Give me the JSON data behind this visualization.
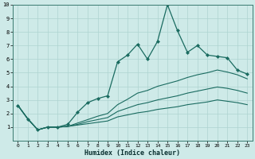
{
  "xlabel": "Humidex (Indice chaleur)",
  "bg_color": "#ceeae8",
  "grid_color": "#aed4d0",
  "line_color": "#1a6b60",
  "xlim": [
    -0.5,
    23.5
  ],
  "ylim": [
    0,
    10
  ],
  "xticks": [
    0,
    1,
    2,
    3,
    4,
    5,
    6,
    7,
    8,
    9,
    10,
    11,
    12,
    13,
    14,
    15,
    16,
    17,
    18,
    19,
    20,
    21,
    22,
    23
  ],
  "yticks": [
    1,
    2,
    3,
    4,
    5,
    6,
    7,
    8,
    9,
    10
  ],
  "series": [
    [
      2.6,
      1.6,
      0.8,
      1.0,
      1.0,
      1.2,
      2.1,
      2.8,
      3.1,
      3.3,
      5.8,
      6.3,
      7.1,
      6.0,
      7.3,
      10.0,
      8.1,
      6.5,
      7.0,
      6.3,
      6.2,
      6.1,
      5.2,
      4.9
    ],
    [
      2.6,
      1.6,
      0.8,
      1.0,
      1.0,
      1.05,
      1.3,
      1.55,
      1.8,
      2.0,
      2.65,
      3.05,
      3.5,
      3.7,
      4.0,
      4.2,
      4.4,
      4.65,
      4.85,
      5.0,
      5.2,
      5.05,
      4.85,
      4.55
    ],
    [
      2.6,
      1.6,
      0.8,
      1.0,
      1.0,
      1.05,
      1.2,
      1.4,
      1.55,
      1.7,
      2.15,
      2.4,
      2.65,
      2.8,
      3.0,
      3.15,
      3.3,
      3.5,
      3.65,
      3.8,
      3.95,
      3.85,
      3.7,
      3.5
    ],
    [
      2.6,
      1.6,
      0.8,
      1.0,
      1.0,
      1.05,
      1.15,
      1.25,
      1.35,
      1.45,
      1.75,
      1.9,
      2.05,
      2.15,
      2.3,
      2.4,
      2.5,
      2.65,
      2.75,
      2.85,
      3.0,
      2.9,
      2.8,
      2.65
    ]
  ],
  "marker_series": 0
}
